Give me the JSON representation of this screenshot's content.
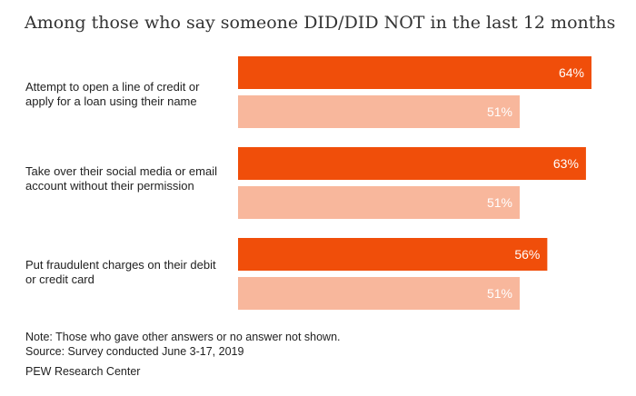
{
  "chart_data": {
    "type": "bar",
    "title": "Among those who say someone DID/DID NOT in the last 12 months",
    "categories": [
      "Attempt to open a line of credit or apply for a loan using their name",
      "Take over their social media or email account without their permission",
      "Put fraudulent charges on their debit or credit card"
    ],
    "series": [
      {
        "values": [
          64,
          63,
          56
        ],
        "labels": [
          "64%",
          "63%",
          "56%"
        ],
        "color": "#f04e0a"
      },
      {
        "values": [
          51,
          51,
          51
        ],
        "labels": [
          "51%",
          "51%",
          "51%"
        ],
        "color": "#f8b79c"
      }
    ],
    "xlim": [
      0,
      64
    ],
    "grid": false,
    "legend": "none"
  },
  "labels": [
    "Attempt to open a line of credit or apply for a loan using their name",
    "Take over their social media or email account without their permission",
    "Put fraudulent charges on their debit or credit card"
  ],
  "notes": {
    "note": "Note: Those who gave other answers or no answer not shown.",
    "source": "Source: Survey conducted June 3-17, 2019",
    "org": "PEW Research Center"
  }
}
